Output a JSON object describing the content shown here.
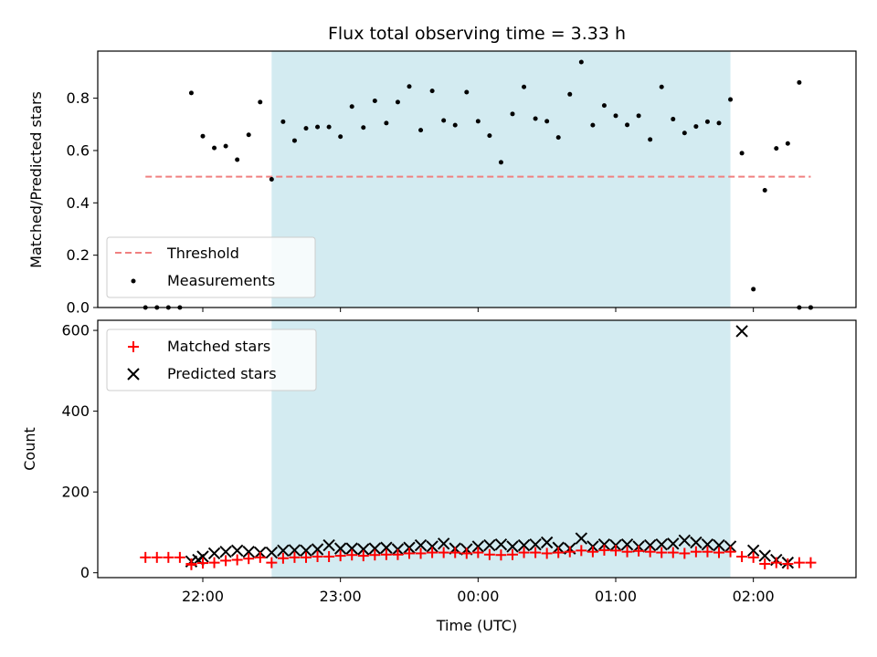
{
  "chart_data": [
    {
      "type": "scatter",
      "title": "Flux total observing time = 3.33 h",
      "xlabel": "",
      "ylabel": "Matched/Predicted stars",
      "xlim": [
        "21:45",
        "02:30"
      ],
      "ylim": [
        0,
        0.98
      ],
      "yticks": [
        0.0,
        0.2,
        0.4,
        0.6,
        0.8
      ],
      "ytick_labels": [
        "0.0",
        "0.2",
        "0.4",
        "0.6",
        "0.8"
      ],
      "grid": false,
      "legend": "lower-left",
      "shaded_interval": [
        "22:30",
        "01:50"
      ],
      "shade_color": "#d3ebf1",
      "threshold": {
        "name": "Threshold",
        "value": 0.5,
        "x": [
          "21:35",
          "02:25"
        ],
        "color": "#f08080",
        "style": "dashed"
      },
      "series": [
        {
          "name": "Measurements",
          "color": "#000000",
          "marker": "dot",
          "x": [
            "21:35",
            "21:40",
            "21:45",
            "21:50",
            "21:55",
            "22:00",
            "22:05",
            "22:10",
            "22:15",
            "22:20",
            "22:25",
            "22:30",
            "22:35",
            "22:40",
            "22:45",
            "22:50",
            "22:55",
            "23:00",
            "23:05",
            "23:10",
            "23:15",
            "23:20",
            "23:25",
            "23:30",
            "23:35",
            "23:40",
            "23:45",
            "23:50",
            "23:55",
            "00:00",
            "00:05",
            "00:10",
            "00:15",
            "00:20",
            "00:25",
            "00:30",
            "00:35",
            "00:40",
            "00:45",
            "00:50",
            "00:55",
            "01:00",
            "01:05",
            "01:10",
            "01:15",
            "01:20",
            "01:25",
            "01:30",
            "01:35",
            "01:40",
            "01:45",
            "01:50",
            "01:55",
            "02:00",
            "02:05",
            "02:10",
            "02:15",
            "02:20",
            "02:25"
          ],
          "y": [
            0.0,
            0.0,
            0.0,
            0.0,
            0.82,
            0.655,
            0.61,
            0.617,
            0.565,
            0.66,
            0.785,
            0.49,
            0.71,
            0.638,
            0.685,
            0.69,
            0.69,
            0.653,
            0.768,
            0.688,
            0.79,
            0.705,
            0.785,
            0.845,
            0.678,
            0.828,
            0.715,
            0.697,
            0.823,
            0.712,
            0.657,
            0.555,
            0.74,
            0.843,
            0.722,
            0.712,
            0.65,
            0.815,
            0.938,
            0.697,
            0.772,
            0.733,
            0.698,
            0.733,
            0.642,
            0.843,
            0.72,
            0.667,
            0.692,
            0.71,
            0.705,
            0.795,
            0.59,
            0.07,
            0.448,
            0.608,
            0.627,
            0.86,
            0.0
          ]
        },
        {
          "name": "",
          "color": "#000000",
          "marker": "dot",
          "x": [
            "02:20",
            "02:25"
          ],
          "y": [
            0.0,
            0.0
          ]
        }
      ]
    },
    {
      "type": "scatter",
      "title": "",
      "xlabel": "Time (UTC)",
      "ylabel": "Count",
      "xlim": [
        "21:45",
        "02:30"
      ],
      "ylim": [
        -12,
        625
      ],
      "yticks": [
        0,
        200,
        400,
        600
      ],
      "ytick_labels": [
        "0",
        "200",
        "400",
        "600"
      ],
      "xticks": [
        "22:00",
        "23:00",
        "00:00",
        "01:00",
        "02:00"
      ],
      "xtick_labels": [
        "22:00",
        "23:00",
        "00:00",
        "01:00",
        "02:00"
      ],
      "grid": false,
      "legend": "top-left",
      "shaded_interval": [
        "22:30",
        "01:50"
      ],
      "shade_color": "#d3ebf1",
      "series": [
        {
          "name": "Matched stars",
          "color": "#ff0000",
          "marker": "plus",
          "x": [
            "21:35",
            "21:40",
            "21:45",
            "21:50",
            "21:55",
            "22:00",
            "22:05",
            "22:10",
            "22:15",
            "22:20",
            "22:25",
            "22:30",
            "22:35",
            "22:40",
            "22:45",
            "22:50",
            "22:55",
            "23:00",
            "23:05",
            "23:10",
            "23:15",
            "23:20",
            "23:25",
            "23:30",
            "23:35",
            "23:40",
            "23:45",
            "23:50",
            "23:55",
            "00:00",
            "00:05",
            "00:10",
            "00:15",
            "00:20",
            "00:25",
            "00:30",
            "00:35",
            "00:40",
            "00:45",
            "00:50",
            "00:55",
            "01:00",
            "01:05",
            "01:10",
            "01:15",
            "01:20",
            "01:25",
            "01:30",
            "01:35",
            "01:40",
            "01:45",
            "01:50",
            "01:55",
            "02:00",
            "02:05",
            "02:10",
            "02:15",
            "02:20",
            "02:25",
            "21:55"
          ],
          "y": [
            38,
            38,
            38,
            38,
            20,
            24,
            25,
            30,
            32,
            35,
            38,
            25,
            36,
            38,
            38,
            40,
            40,
            42,
            44,
            42,
            44,
            45,
            45,
            48,
            48,
            50,
            50,
            50,
            48,
            50,
            45,
            44,
            45,
            50,
            50,
            48,
            50,
            52,
            55,
            52,
            56,
            55,
            52,
            54,
            52,
            50,
            50,
            48,
            52,
            52,
            50,
            52,
            40,
            38,
            22,
            25,
            22,
            25,
            25,
            22
          ]
        },
        {
          "name": "Predicted stars",
          "color": "#000000",
          "marker": "x",
          "x": [
            "21:55",
            "21:58",
            "22:00",
            "22:05",
            "22:10",
            "22:15",
            "22:20",
            "22:25",
            "22:30",
            "22:35",
            "22:40",
            "22:45",
            "22:50",
            "22:55",
            "23:00",
            "23:05",
            "23:10",
            "23:15",
            "23:20",
            "23:25",
            "23:30",
            "23:35",
            "23:40",
            "23:45",
            "23:50",
            "23:55",
            "00:00",
            "00:05",
            "00:10",
            "00:15",
            "00:20",
            "00:25",
            "00:30",
            "00:35",
            "00:40",
            "00:45",
            "00:50",
            "00:55",
            "01:00",
            "01:05",
            "01:10",
            "01:15",
            "01:20",
            "01:25",
            "01:30",
            "01:35",
            "01:40",
            "01:45",
            "01:50",
            "01:55",
            "02:00",
            "02:05",
            "02:10",
            "02:15"
          ],
          "y": [
            28,
            32,
            40,
            48,
            52,
            55,
            52,
            50,
            50,
            55,
            56,
            55,
            58,
            68,
            60,
            60,
            58,
            60,
            62,
            58,
            62,
            68,
            65,
            72,
            60,
            58,
            65,
            68,
            70,
            65,
            68,
            70,
            75,
            62,
            60,
            85,
            65,
            70,
            68,
            70,
            65,
            68,
            70,
            72,
            80,
            75,
            70,
            68,
            65,
            598,
            55,
            42,
            32,
            25
          ]
        }
      ]
    }
  ]
}
